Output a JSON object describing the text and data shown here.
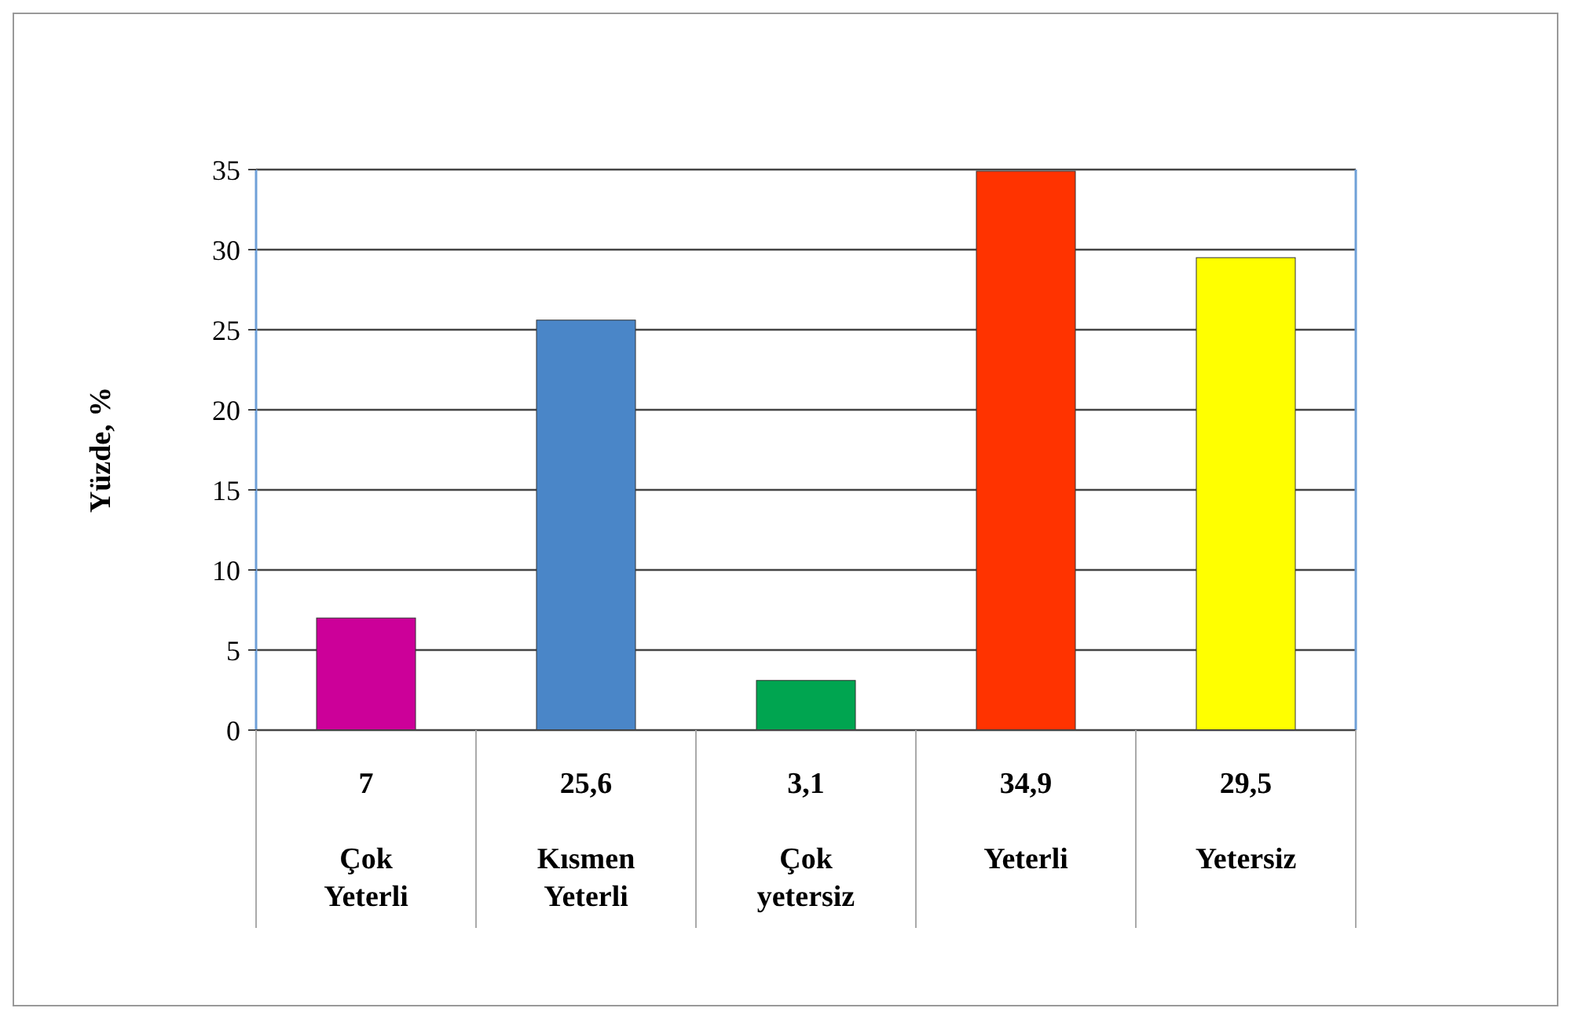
{
  "chart_data": {
    "type": "bar",
    "ylabel": "Yüzde, %",
    "categories": [
      "Çok Yeterli",
      "Kısmen Yeterli",
      "Çok yetersiz",
      "Yeterli",
      "Yetersiz"
    ],
    "values": [
      7,
      25.6,
      3.1,
      34.9,
      29.5
    ],
    "value_labels": [
      "7",
      "25,6",
      "3,1",
      "34,9",
      "29,5"
    ],
    "colors": [
      "#cc0099",
      "#4a86c8",
      "#00a550",
      "#ff3300",
      "#ffff00"
    ],
    "ylim": [
      0,
      35
    ],
    "yticks": [
      0,
      5,
      10,
      15,
      20,
      25,
      30,
      35
    ],
    "grid": "y"
  }
}
